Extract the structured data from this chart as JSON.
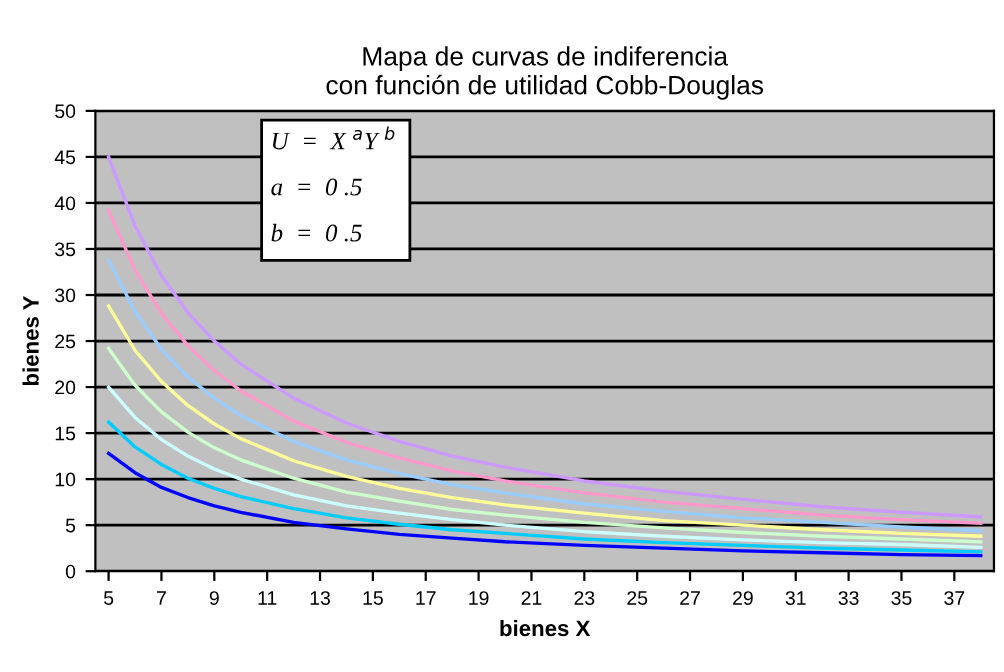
{
  "chart_data": {
    "type": "line",
    "title": "Mapa de curvas de indiferencia\ncon función de utilidad Cobb-Douglas",
    "xlabel": "bienes X",
    "ylabel": "bienes Y",
    "x": [
      5,
      6,
      7,
      8,
      9,
      10,
      12,
      14,
      16,
      18,
      20,
      23,
      26,
      29,
      32,
      35,
      38
    ],
    "series": [
      {
        "color": "#cc99ff",
        "values": [
          45,
          37.5,
          32.1,
          28.1,
          25,
          22.5,
          18.8,
          16.1,
          14.1,
          12.5,
          11.3,
          9.8,
          8.7,
          7.8,
          7.0,
          6.4,
          5.9
        ]
      },
      {
        "color": "#ff99cc",
        "values": [
          39.2,
          32.7,
          28,
          24.5,
          21.8,
          19.6,
          16.3,
          14,
          12.3,
          10.9,
          9.8,
          8.5,
          7.5,
          6.8,
          6.1,
          5.6,
          5.2
        ]
      },
      {
        "color": "#99ccff",
        "values": [
          33.8,
          28.2,
          24.1,
          21.1,
          18.8,
          16.9,
          14.1,
          12.1,
          10.6,
          9.4,
          8.5,
          7.3,
          6.5,
          5.8,
          5.3,
          4.8,
          4.4
        ]
      },
      {
        "color": "#ffff99",
        "values": [
          28.8,
          24,
          20.6,
          18,
          16,
          14.4,
          12,
          10.3,
          9,
          8,
          7.2,
          6.3,
          5.5,
          5.0,
          4.5,
          4.1,
          3.8
        ]
      },
      {
        "color": "#ccffcc",
        "values": [
          24.2,
          20.2,
          17.3,
          15.1,
          13.4,
          12.1,
          10.1,
          8.6,
          7.6,
          6.7,
          6.1,
          5.3,
          4.7,
          4.2,
          3.8,
          3.5,
          3.2
        ]
      },
      {
        "color": "#ccffff",
        "values": [
          20,
          16.7,
          14.3,
          12.5,
          11.1,
          10,
          8.3,
          7.1,
          6.3,
          5.6,
          5,
          4.3,
          3.8,
          3.4,
          3.1,
          2.9,
          2.6
        ]
      },
      {
        "color": "#00ccff",
        "values": [
          16.2,
          13.5,
          11.6,
          10.1,
          9,
          8.1,
          6.8,
          5.8,
          5.1,
          4.5,
          4.1,
          3.5,
          3.1,
          2.8,
          2.5,
          2.3,
          2.1
        ]
      },
      {
        "color": "#0000ff",
        "values": [
          12.8,
          10.7,
          9.1,
          8,
          7.1,
          6.4,
          5.3,
          4.6,
          4,
          3.6,
          3.2,
          2.8,
          2.5,
          2.2,
          2,
          1.8,
          1.7
        ]
      }
    ],
    "annotations": [
      "U  =  X $^{a}$Y $^{b}$",
      "a  =  0 .5",
      "b  =  0 .5"
    ],
    "xlim": [
      4.5,
      38.5
    ],
    "xticks": [
      5,
      7,
      9,
      11,
      13,
      15,
      17,
      19,
      21,
      23,
      25,
      27,
      29,
      31,
      33,
      35,
      37
    ],
    "ylim": [
      0,
      50
    ],
    "yticks": [
      0,
      5,
      10,
      15,
      20,
      25,
      30,
      35,
      40,
      45,
      50
    ],
    "grid": "y",
    "legend": false,
    "marker": "none",
    "line_style": "solid"
  }
}
